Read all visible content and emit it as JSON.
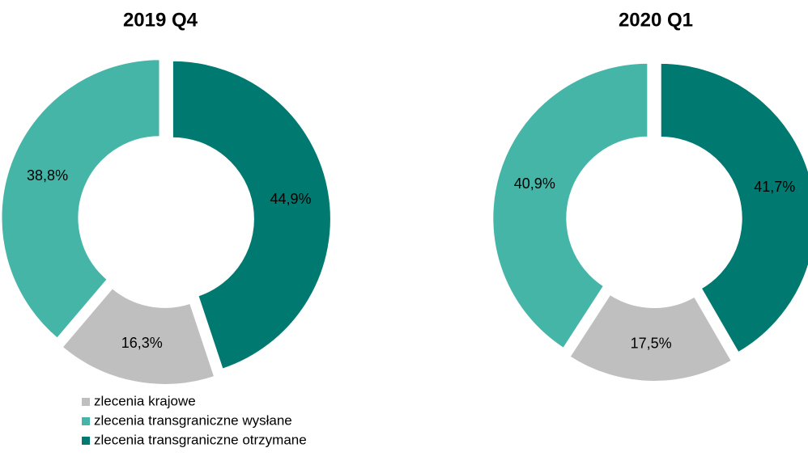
{
  "chart_data": [
    {
      "type": "donut",
      "title": "2019 Q4",
      "categories": [
        "zlecenia krajowe",
        "zlecenia transgraniczne wysłane",
        "zlecenia transgraniczne otrzymane"
      ],
      "values": [
        16.3,
        38.8,
        44.9
      ],
      "value_labels": [
        "16,3%",
        "38,8%",
        "44,9%"
      ],
      "colors": [
        "#bfbfbf",
        "#45b5a8",
        "#007a70"
      ]
    },
    {
      "type": "donut",
      "title": "2020 Q1",
      "categories": [
        "zlecenia krajowe",
        "zlecenia transgraniczne wysłane",
        "zlecenia transgraniczne otrzymane"
      ],
      "values": [
        17.5,
        40.9,
        41.7
      ],
      "value_labels": [
        "17,5%",
        "40,9%",
        "41,7%"
      ],
      "colors": [
        "#bfbfbf",
        "#45b5a8",
        "#007a70"
      ]
    }
  ]
}
